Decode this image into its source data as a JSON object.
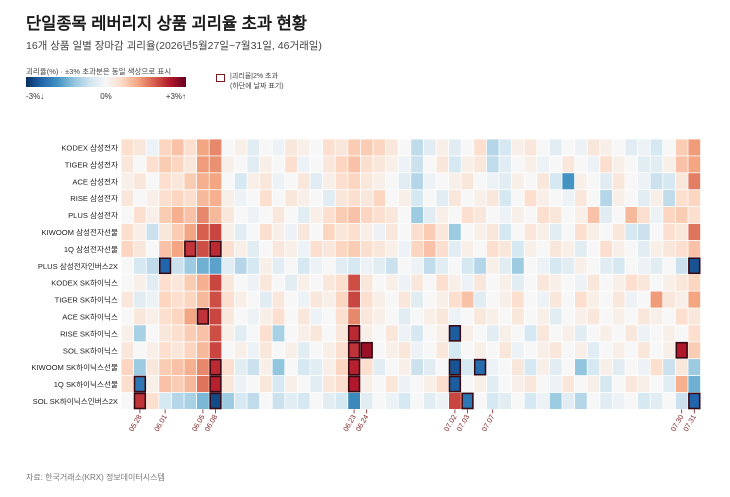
{
  "title": "단일종목 레버리지 상품 괴리율 초과 현황",
  "subtitle": "16개 상품 일별 장마감 괴리율(2026년5월27일~7월31일, 46거래일)",
  "legend": {
    "title": "괴리율(%) · ±3% 초과분은 동일 색상으로 표시",
    "min_label": "-3%↓",
    "mid_label": "0%",
    "max_label": "+3%↑",
    "highlight_label_1": "|괴리율|2% 초과",
    "highlight_label_2": "(하단에 날짜 표기)"
  },
  "source": "자료: 한국거래소(KRX) 정보데이터시스템",
  "colors": {
    "negative_max": "#053061",
    "neutral": "#f7f7f7",
    "positive_max": "#67001f",
    "highlight_border": "#3a0a14"
  },
  "chart_data": {
    "type": "heatmap",
    "title": "단일종목 레버리지 상품 괴리율 초과 현황",
    "value_unit": "%",
    "color_range": [
      -3,
      3
    ],
    "highlight_threshold_abs": 2,
    "num_dates": 46,
    "date_tick_labels": [
      {
        "index": 1,
        "label": "05.28"
      },
      {
        "index": 3,
        "label": "06.01"
      },
      {
        "index": 6,
        "label": "06.05"
      },
      {
        "index": 7,
        "label": "06.08"
      },
      {
        "index": 18,
        "label": "06.23"
      },
      {
        "index": 19,
        "label": "06.24"
      },
      {
        "index": 26,
        "label": "07.02"
      },
      {
        "index": 27,
        "label": "07.03"
      },
      {
        "index": 29,
        "label": "07.07"
      },
      {
        "index": 44,
        "label": "07.30"
      },
      {
        "index": 45,
        "label": "07.31"
      }
    ],
    "rows": [
      {
        "name": "KODEX 삼성전자",
        "values": [
          0.3,
          0.2,
          -0.1,
          0.4,
          0.6,
          0.3,
          0.9,
          1.2,
          0.0,
          0.1,
          -0.2,
          0.0,
          -0.1,
          0.2,
          0.1,
          0.0,
          0.3,
          0.2,
          0.5,
          0.5,
          0.4,
          0.2,
          0.0,
          -0.5,
          -0.2,
          0.1,
          -0.2,
          0.0,
          0.3,
          -0.6,
          -0.3,
          0.1,
          0.2,
          0.0,
          -0.2,
          0.0,
          -0.1,
          0.2,
          0.1,
          0.0,
          -0.2,
          -0.1,
          -0.3,
          0.0,
          0.5,
          1.0
        ]
      },
      {
        "name": "TIGER 삼성전자",
        "values": [
          0.2,
          0.0,
          0.3,
          0.5,
          0.4,
          0.2,
          1.0,
          1.1,
          0.1,
          0.0,
          -0.2,
          0.1,
          0.0,
          0.3,
          -0.1,
          0.0,
          0.2,
          0.4,
          0.6,
          0.3,
          0.2,
          0.1,
          -0.1,
          -0.4,
          0.0,
          0.2,
          -0.3,
          0.1,
          0.2,
          -0.5,
          -0.2,
          0.0,
          0.1,
          -0.1,
          0.0,
          0.2,
          0.0,
          -0.1,
          0.3,
          0.1,
          0.0,
          -0.2,
          -0.2,
          0.1,
          0.6,
          0.9
        ]
      },
      {
        "name": "ACE 삼성전자",
        "values": [
          0.1,
          0.2,
          0.0,
          0.3,
          0.2,
          0.5,
          0.8,
          0.9,
          0.0,
          -0.3,
          0.1,
          0.2,
          -0.1,
          0.0,
          0.2,
          -0.2,
          0.1,
          0.3,
          0.4,
          0.2,
          0.1,
          0.0,
          -0.2,
          -0.6,
          -0.1,
          0.0,
          0.1,
          0.2,
          0.0,
          -0.1,
          -0.2,
          0.1,
          0.0,
          0.2,
          -0.3,
          -1.6,
          0.1,
          0.0,
          -0.2,
          0.2,
          0.0,
          -0.1,
          -0.4,
          -0.3,
          0.2,
          1.3
        ]
      },
      {
        "name": "RISE 삼성전자",
        "values": [
          0.2,
          0.0,
          0.1,
          0.3,
          0.4,
          0.3,
          0.7,
          0.8,
          0.1,
          -0.1,
          0.0,
          0.3,
          0.0,
          0.2,
          0.1,
          0.0,
          -0.2,
          0.2,
          0.3,
          0.2,
          0.4,
          0.0,
          0.1,
          -0.3,
          0.0,
          -0.2,
          0.2,
          0.0,
          0.1,
          0.2,
          -0.3,
          0.0,
          0.3,
          0.1,
          0.0,
          -0.1,
          0.2,
          0.0,
          -0.6,
          0.1,
          0.0,
          -0.2,
          0.1,
          -0.5,
          0.3,
          0.4
        ]
      },
      {
        "name": "PLUS 삼성전자",
        "values": [
          0.0,
          0.3,
          0.1,
          0.5,
          0.8,
          0.6,
          1.2,
          0.7,
          0.2,
          0.0,
          -0.1,
          0.0,
          0.2,
          0.0,
          -0.2,
          0.1,
          0.3,
          0.5,
          0.6,
          0.4,
          0.3,
          0.2,
          0.0,
          -0.8,
          -0.2,
          0.1,
          0.0,
          0.3,
          0.2,
          0.0,
          -0.1,
          0.1,
          0.0,
          0.3,
          0.2,
          0.0,
          0.1,
          0.6,
          -0.2,
          0.0,
          0.7,
          0.3,
          -0.1,
          0.4,
          0.5,
          0.3
        ]
      },
      {
        "name": "KIWOOM 삼성전자선물",
        "values": [
          0.3,
          0.1,
          -0.4,
          0.2,
          0.5,
          0.9,
          1.6,
          1.9,
          0.1,
          -0.2,
          0.0,
          0.3,
          0.1,
          -0.1,
          0.2,
          0.0,
          0.4,
          0.2,
          0.3,
          0.1,
          -0.1,
          0.2,
          0.0,
          0.3,
          0.5,
          0.2,
          -0.8,
          0.0,
          0.1,
          0.2,
          -0.3,
          0.0,
          0.2,
          0.1,
          -0.2,
          0.0,
          0.3,
          0.1,
          0.0,
          0.2,
          -0.3,
          -0.4,
          0.0,
          0.3,
          0.2,
          1.4
        ]
      },
      {
        "name": "1Q 삼성전자선물",
        "values": [
          0.4,
          0.2,
          0.0,
          0.6,
          0.9,
          2.1,
          1.8,
          2.2,
          0.3,
          0.1,
          -0.2,
          0.0,
          0.2,
          0.1,
          -0.1,
          0.3,
          0.2,
          0.4,
          0.5,
          0.3,
          0.2,
          0.1,
          -0.1,
          0.4,
          0.6,
          0.3,
          -0.2,
          0.1,
          0.0,
          0.3,
          0.2,
          -0.3,
          0.1,
          0.0,
          0.2,
          0.1,
          -0.2,
          0.0,
          0.3,
          0.1,
          0.0,
          -0.2,
          0.1,
          0.2,
          0.3,
          0.6
        ]
      },
      {
        "name": "PLUS 삼성전자인버스2X",
        "values": [
          0.0,
          -0.3,
          -0.5,
          -2.4,
          -0.4,
          -0.8,
          -1.2,
          -1.4,
          -0.2,
          -0.6,
          -0.3,
          0.1,
          -0.2,
          0.0,
          -0.3,
          -0.1,
          0.0,
          -0.2,
          -0.3,
          -0.1,
          -0.2,
          -0.4,
          0.0,
          -0.1,
          -0.5,
          -0.2,
          0.0,
          -0.3,
          -0.6,
          0.1,
          -0.2,
          -0.8,
          0.0,
          -0.1,
          -0.3,
          -0.2,
          0.1,
          0.0,
          -0.2,
          -0.3,
          0.0,
          -0.1,
          -0.2,
          0.0,
          -0.4,
          -2.6
        ]
      },
      {
        "name": "KODEX SK하이닉스",
        "values": [
          0.0,
          0.1,
          -0.2,
          0.3,
          0.2,
          0.5,
          0.8,
          1.9,
          0.2,
          0.0,
          -0.1,
          0.2,
          0.0,
          -0.2,
          0.1,
          0.0,
          0.2,
          0.3,
          1.8,
          0.2,
          0.0,
          0.1,
          -0.1,
          0.2,
          0.0,
          0.3,
          0.1,
          -0.1,
          0.2,
          0.0,
          0.1,
          -0.2,
          0.0,
          0.2,
          0.1,
          0.0,
          -0.1,
          0.2,
          0.0,
          0.1,
          0.3,
          0.2,
          0.0,
          0.1,
          0.2,
          0.4
        ]
      },
      {
        "name": "TIGER SK하이닉스",
        "values": [
          0.2,
          -0.2,
          -0.1,
          0.4,
          0.3,
          0.4,
          0.7,
          1.8,
          0.3,
          0.1,
          0.0,
          -0.2,
          0.2,
          0.0,
          -0.1,
          0.2,
          0.1,
          0.4,
          1.9,
          0.3,
          0.1,
          0.0,
          0.2,
          -0.2,
          0.0,
          0.1,
          0.3,
          0.6,
          -0.2,
          0.0,
          0.1,
          0.3,
          0.0,
          -0.1,
          0.2,
          0.0,
          0.3,
          0.1,
          0.0,
          0.2,
          -0.1,
          0.0,
          1.0,
          0.2,
          0.1,
          0.9
        ]
      },
      {
        "name": "ACE SK하이닉스",
        "values": [
          0.0,
          0.2,
          0.1,
          0.3,
          0.4,
          0.9,
          2.1,
          1.9,
          0.2,
          0.0,
          -0.1,
          0.1,
          0.3,
          0.0,
          0.2,
          -0.1,
          0.0,
          0.3,
          1.2,
          0.2,
          0.1,
          0.0,
          -0.2,
          0.0,
          0.1,
          0.2,
          -0.1,
          0.0,
          0.2,
          0.1,
          0.0,
          0.2,
          0.0,
          0.1,
          -0.2,
          0.0,
          0.1,
          0.2,
          0.0,
          0.1,
          0.0,
          0.2,
          0.1,
          0.0,
          0.3,
          0.2
        ]
      },
      {
        "name": "RISE SK하이닉스",
        "values": [
          0.1,
          -0.7,
          0.0,
          0.2,
          0.3,
          0.5,
          0.6,
          1.8,
          0.1,
          -0.2,
          0.0,
          0.3,
          -0.7,
          0.0,
          0.1,
          0.2,
          0.0,
          0.2,
          2.2,
          0.1,
          0.0,
          0.2,
          -0.1,
          -0.3,
          0.0,
          0.1,
          -2.5,
          0.1,
          0.0,
          -0.2,
          0.1,
          0.0,
          -0.3,
          0.2,
          0.0,
          0.1,
          -0.2,
          0.0,
          0.1,
          0.0,
          0.2,
          -0.1,
          0.0,
          0.1,
          0.0,
          0.3
        ]
      },
      {
        "name": "SOL SK하이닉스",
        "values": [
          0.2,
          0.0,
          0.1,
          0.3,
          0.2,
          0.4,
          0.7,
          1.9,
          0.0,
          0.1,
          -0.1,
          0.2,
          0.0,
          0.1,
          -0.2,
          0.0,
          0.1,
          0.3,
          2.1,
          2.6,
          0.0,
          0.1,
          0.2,
          -0.1,
          0.0,
          0.2,
          -0.3,
          0.0,
          0.1,
          0.0,
          0.2,
          -0.1,
          0.0,
          0.1,
          0.2,
          0.0,
          0.1,
          -0.2,
          0.0,
          0.1,
          0.0,
          0.2,
          0.0,
          0.1,
          2.4,
          0.5
        ]
      },
      {
        "name": "KIWOOM SK하이닉스선물",
        "values": [
          0.4,
          -0.8,
          0.2,
          0.5,
          0.6,
          0.8,
          1.2,
          2.2,
          0.3,
          -0.2,
          -0.4,
          0.1,
          -0.9,
          0.0,
          -0.3,
          -0.2,
          0.1,
          0.4,
          2.3,
          0.3,
          -0.2,
          0.0,
          0.1,
          -0.4,
          -0.2,
          0.0,
          -2.6,
          -0.3,
          -2.3,
          -0.1,
          0.0,
          0.2,
          -0.3,
          0.1,
          -0.2,
          0.0,
          -0.9,
          -0.3,
          0.1,
          -0.2,
          0.0,
          -0.1,
          0.3,
          -0.4,
          0.2,
          -0.8
        ]
      },
      {
        "name": "1Q SK하이닉스선물",
        "values": [
          0.3,
          -2.1,
          0.1,
          0.6,
          0.5,
          0.7,
          1.4,
          2.3,
          0.2,
          -0.1,
          0.0,
          0.2,
          -0.3,
          0.1,
          0.0,
          -0.2,
          0.2,
          0.3,
          2.4,
          0.1,
          0.0,
          0.2,
          -0.1,
          0.0,
          0.1,
          0.3,
          -2.5,
          0.0,
          0.1,
          -0.2,
          0.0,
          0.1,
          0.2,
          0.0,
          -0.1,
          0.2,
          0.0,
          0.1,
          -0.3,
          0.0,
          0.2,
          0.1,
          0.0,
          -0.2,
          0.8,
          -1.2
        ]
      },
      {
        "name": "SOL SK하이닉스인버스2X",
        "values": [
          0.0,
          2.1,
          0.3,
          -0.3,
          -0.6,
          -0.7,
          -1.1,
          -2.7,
          -0.8,
          -0.3,
          -0.5,
          0.0,
          -0.4,
          -0.2,
          -0.3,
          0.0,
          -0.2,
          -0.3,
          -1.8,
          -0.2,
          0.0,
          -0.1,
          -0.3,
          0.0,
          -0.2,
          -0.1,
          1.9,
          -2.1,
          0.0,
          -0.3,
          -0.2,
          0.0,
          -0.3,
          -0.1,
          -0.8,
          -0.2,
          -0.6,
          0.0,
          -0.2,
          -0.1,
          0.0,
          -0.3,
          -0.2,
          0.0,
          -0.4,
          -2.4
        ]
      }
    ]
  }
}
